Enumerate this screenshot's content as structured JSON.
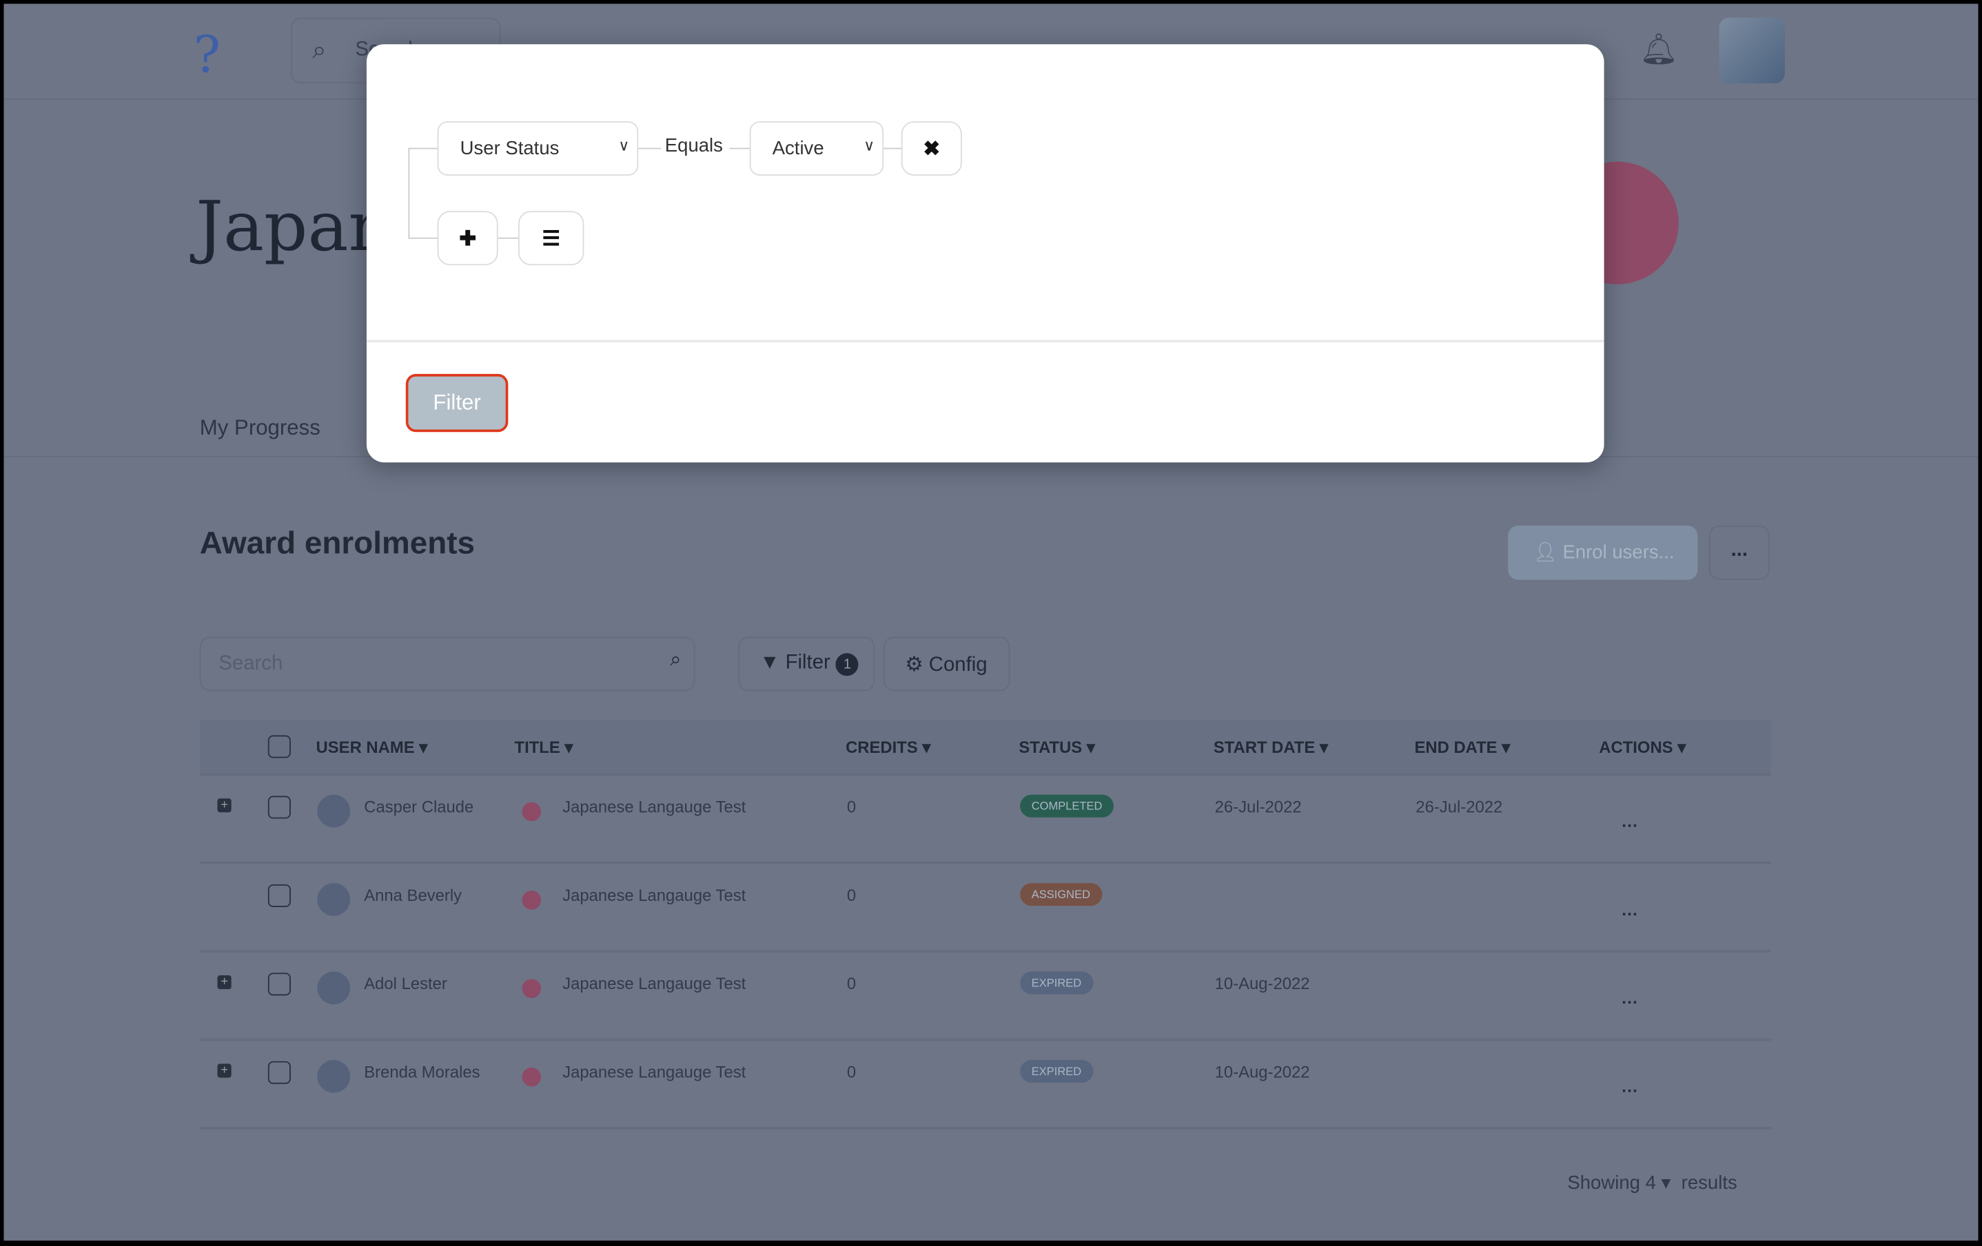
{
  "header": {
    "search_placeholder": "Search",
    "logo": "lightbulb-logo"
  },
  "course": {
    "title": "Japanese Langauge Test",
    "color": "#c03a5c"
  },
  "tabs": [
    "My Progress"
  ],
  "section": {
    "title": "Award enrolments",
    "enrol_label": "Enrol users...",
    "more_label": "..."
  },
  "toolbar": {
    "search_placeholder": "Search",
    "filter_label": "Filter",
    "filter_count": "1",
    "config_label": "Config"
  },
  "table": {
    "columns": [
      "USER NAME",
      "TITLE",
      "CREDITS",
      "STATUS",
      "START DATE",
      "END DATE",
      "ACTIONS"
    ],
    "rows": [
      {
        "name": "Casper Claude",
        "title": "Japanese Langauge Test",
        "credits": "0",
        "status": "COMPLETED",
        "status_color": "#2e8b57",
        "start": "26-Jul-2022",
        "end": "26-Jul-2022",
        "expandable": true
      },
      {
        "name": "Anna Beverly",
        "title": "Japanese Langauge Test",
        "credits": "0",
        "status": "ASSIGNED",
        "status_color": "#c8733e",
        "start": "",
        "end": "",
        "expandable": false
      },
      {
        "name": "Adol Lester",
        "title": "Japanese Langauge Test",
        "credits": "0",
        "status": "EXPIRED",
        "status_color": "#8b9bb0",
        "start": "10-Aug-2022",
        "end": "",
        "expandable": true
      },
      {
        "name": "Brenda Morales",
        "title": "Japanese Langauge Test",
        "credits": "0",
        "status": "EXPIRED",
        "status_color": "#8b9bb0",
        "start": "10-Aug-2022",
        "end": "",
        "expandable": true
      }
    ]
  },
  "footer": {
    "showing": "Showing",
    "count": "4",
    "results": "results"
  },
  "modal": {
    "field": "User Status",
    "operator": "Equals",
    "value": "Active",
    "apply_label": "Filter"
  }
}
